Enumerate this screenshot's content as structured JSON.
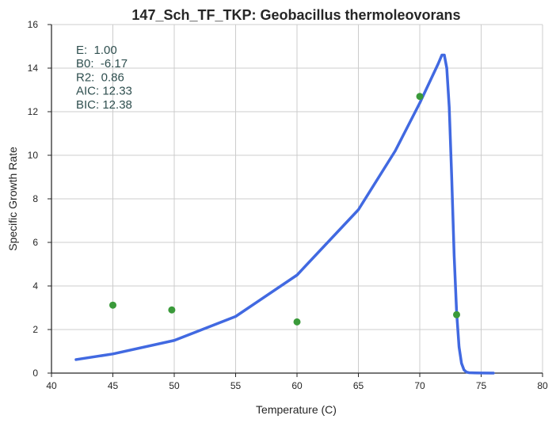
{
  "chart_data": {
    "type": "scatter",
    "title": "147_Sch_TF_TKP: Geobacillus thermoleovorans",
    "xlabel": "Temperature (C)",
    "ylabel": "Specific Growth Rate",
    "xlim": [
      40,
      80
    ],
    "ylim": [
      0,
      16
    ],
    "xticks": [
      "40",
      "45",
      "50",
      "55",
      "60",
      "65",
      "70",
      "75",
      "80"
    ],
    "yticks": [
      "0",
      "2",
      "4",
      "6",
      "8",
      "10",
      "12",
      "14",
      "16"
    ],
    "grid": true,
    "points": {
      "x": [
        45.0,
        49.8,
        60.0,
        70.0,
        73.0
      ],
      "y": [
        3.12,
        2.9,
        2.35,
        12.7,
        2.68
      ],
      "color": "#3a9a3a"
    },
    "fit": {
      "color": "#4169e1",
      "x": [
        42.0,
        45.0,
        50.0,
        55.0,
        60.0,
        65.0,
        68.0,
        70.0,
        71.0,
        71.5,
        71.8,
        72.0,
        72.2,
        72.4,
        72.6,
        72.8,
        73.0,
        73.2,
        73.4,
        73.6,
        73.8,
        74.0,
        74.5,
        75.0,
        76.0
      ],
      "y": [
        0.62,
        0.88,
        1.5,
        2.6,
        4.5,
        7.5,
        10.2,
        12.4,
        13.6,
        14.2,
        14.6,
        14.6,
        14.0,
        12.2,
        9.0,
        5.4,
        2.8,
        1.2,
        0.45,
        0.15,
        0.05,
        0.02,
        0.01,
        0.005,
        0.0
      ]
    },
    "annotations": [
      "E:  1.00",
      "B0:  -6.17",
      "R2:  0.86",
      "AIC: 12.33",
      "BIC: 12.38"
    ]
  },
  "colors": {
    "grid": "#cccccc",
    "axis": "#262626",
    "background": "#ffffff"
  }
}
